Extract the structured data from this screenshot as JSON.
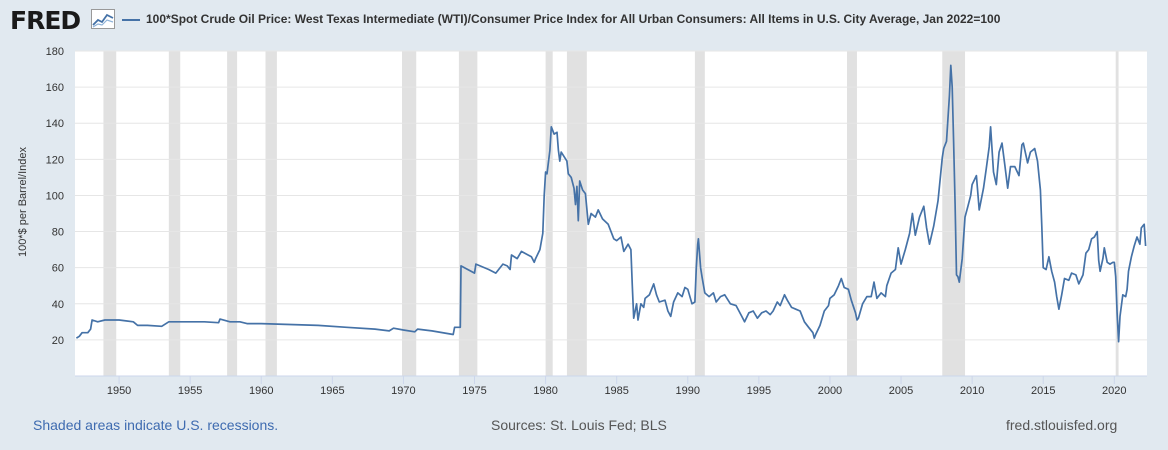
{
  "header": {
    "logo_text": "FRED",
    "series_title": "100*Spot Crude Oil Price: West Texas Intermediate (WTI)/Consumer Price Index for All Urban Consumers: All Items in U.S. City Average, Jan 2022=100"
  },
  "footer": {
    "recession_note": "Shaded areas indicate U.S. recessions.",
    "sources": "Sources: St. Louis Fed; BLS",
    "site": "fred.stlouisfed.org"
  },
  "colors": {
    "line": "#4572a7",
    "recession": "#e1e1e1",
    "background": "#e1e9f0",
    "plot": "#ffffff"
  },
  "chart_data": {
    "type": "line",
    "title": "100*Spot Crude Oil Price: West Texas Intermediate (WTI)/Consumer Price Index for All Urban Consumers: All Items in U.S. City Average, Jan 2022=100",
    "ylabel": "100*$ per Barrel/Index",
    "xlabel": "",
    "xlim": [
      1946.9,
      2022.3
    ],
    "ylim": [
      0,
      180
    ],
    "x_ticks": [
      1950,
      1955,
      1960,
      1965,
      1970,
      1975,
      1980,
      1985,
      1990,
      1995,
      2000,
      2005,
      2010,
      2015,
      2020
    ],
    "y_ticks": [
      20,
      40,
      60,
      80,
      100,
      120,
      140,
      160,
      180
    ],
    "grid": true,
    "recessions": [
      [
        1948.9,
        1949.8
      ],
      [
        1953.5,
        1954.3
      ],
      [
        1957.6,
        1958.3
      ],
      [
        1960.3,
        1961.1
      ],
      [
        1969.9,
        1970.9
      ],
      [
        1973.9,
        1975.2
      ],
      [
        1980.0,
        1980.5
      ],
      [
        1981.5,
        1982.9
      ],
      [
        1990.5,
        1991.2
      ],
      [
        2001.2,
        2001.9
      ],
      [
        2007.9,
        2009.5
      ],
      [
        2020.1,
        2020.3
      ]
    ],
    "series": [
      {
        "points": [
          [
            1947.0,
            21
          ],
          [
            1947.2,
            22
          ],
          [
            1947.4,
            24
          ],
          [
            1947.8,
            24
          ],
          [
            1948.0,
            26
          ],
          [
            1948.1,
            31
          ],
          [
            1948.5,
            30
          ],
          [
            1949.0,
            31
          ],
          [
            1950.0,
            31
          ],
          [
            1951.0,
            30
          ],
          [
            1951.3,
            28
          ],
          [
            1952.0,
            28
          ],
          [
            1953.0,
            27.5
          ],
          [
            1953.5,
            30
          ],
          [
            1955.0,
            30
          ],
          [
            1956.0,
            30
          ],
          [
            1957.0,
            29.5
          ],
          [
            1957.1,
            31.5
          ],
          [
            1957.8,
            30
          ],
          [
            1958.5,
            30
          ],
          [
            1959.0,
            29
          ],
          [
            1960.0,
            29
          ],
          [
            1962.0,
            28.5
          ],
          [
            1964.0,
            28
          ],
          [
            1966.0,
            27
          ],
          [
            1968.0,
            26
          ],
          [
            1969.0,
            25
          ],
          [
            1969.3,
            26.5
          ],
          [
            1970.0,
            25.5
          ],
          [
            1970.8,
            24.5
          ],
          [
            1971.0,
            26
          ],
          [
            1972.0,
            25
          ],
          [
            1973.5,
            23
          ],
          [
            1973.6,
            27
          ],
          [
            1974.0,
            27
          ],
          [
            1974.05,
            61
          ],
          [
            1975.0,
            57
          ],
          [
            1975.1,
            62
          ],
          [
            1976.0,
            59
          ],
          [
            1976.5,
            57
          ],
          [
            1977.0,
            62
          ],
          [
            1977.3,
            61
          ],
          [
            1977.5,
            59
          ],
          [
            1977.6,
            67
          ],
          [
            1978.0,
            65
          ],
          [
            1978.3,
            69
          ],
          [
            1979.0,
            66
          ],
          [
            1979.2,
            63
          ],
          [
            1979.3,
            65
          ],
          [
            1979.6,
            70
          ],
          [
            1979.8,
            79
          ],
          [
            1979.9,
            100
          ],
          [
            1980.0,
            113
          ],
          [
            1980.1,
            112
          ],
          [
            1980.3,
            125
          ],
          [
            1980.4,
            138
          ],
          [
            1980.6,
            134
          ],
          [
            1980.8,
            135
          ],
          [
            1980.9,
            125
          ],
          [
            1981.0,
            119
          ],
          [
            1981.1,
            124
          ],
          [
            1981.5,
            119
          ],
          [
            1981.6,
            112
          ],
          [
            1981.8,
            110
          ],
          [
            1982.0,
            104
          ],
          [
            1982.1,
            95
          ],
          [
            1982.2,
            105
          ],
          [
            1982.3,
            86
          ],
          [
            1982.4,
            108
          ],
          [
            1982.6,
            103
          ],
          [
            1982.8,
            101
          ],
          [
            1983.0,
            84
          ],
          [
            1983.2,
            90
          ],
          [
            1983.5,
            88
          ],
          [
            1983.7,
            92
          ],
          [
            1984.0,
            87
          ],
          [
            1984.4,
            84
          ],
          [
            1984.6,
            80
          ],
          [
            1984.8,
            76
          ],
          [
            1985.0,
            75
          ],
          [
            1985.3,
            77
          ],
          [
            1985.5,
            69
          ],
          [
            1985.8,
            73
          ],
          [
            1986.0,
            70
          ],
          [
            1986.1,
            50
          ],
          [
            1986.2,
            32
          ],
          [
            1986.4,
            40
          ],
          [
            1986.5,
            31
          ],
          [
            1986.7,
            40
          ],
          [
            1986.9,
            38
          ],
          [
            1987.0,
            43
          ],
          [
            1987.3,
            45
          ],
          [
            1987.6,
            51
          ],
          [
            1987.8,
            45
          ],
          [
            1988.0,
            41
          ],
          [
            1988.4,
            42
          ],
          [
            1988.6,
            36
          ],
          [
            1988.8,
            33
          ],
          [
            1989.0,
            41
          ],
          [
            1989.3,
            46
          ],
          [
            1989.6,
            44
          ],
          [
            1989.8,
            49
          ],
          [
            1990.0,
            48
          ],
          [
            1990.3,
            40
          ],
          [
            1990.5,
            41
          ],
          [
            1990.6,
            60
          ],
          [
            1990.7,
            73
          ],
          [
            1990.75,
            76
          ],
          [
            1990.9,
            60
          ],
          [
            1991.0,
            55
          ],
          [
            1991.2,
            46
          ],
          [
            1991.5,
            44
          ],
          [
            1991.8,
            46
          ],
          [
            1992.0,
            41
          ],
          [
            1992.3,
            44
          ],
          [
            1992.6,
            45
          ],
          [
            1993.0,
            40
          ],
          [
            1993.4,
            39
          ],
          [
            1993.8,
            33
          ],
          [
            1994.0,
            30
          ],
          [
            1994.3,
            35
          ],
          [
            1994.6,
            36
          ],
          [
            1994.9,
            32
          ],
          [
            1995.2,
            35
          ],
          [
            1995.5,
            36
          ],
          [
            1995.8,
            34
          ],
          [
            1996.0,
            36
          ],
          [
            1996.3,
            41
          ],
          [
            1996.5,
            39
          ],
          [
            1996.8,
            45
          ],
          [
            1997.0,
            42
          ],
          [
            1997.3,
            38
          ],
          [
            1997.6,
            37
          ],
          [
            1997.9,
            36
          ],
          [
            1998.2,
            30
          ],
          [
            1998.5,
            27
          ],
          [
            1998.8,
            24
          ],
          [
            1998.9,
            21
          ],
          [
            1999.0,
            23
          ],
          [
            1999.3,
            28
          ],
          [
            1999.6,
            36
          ],
          [
            1999.9,
            39
          ],
          [
            2000.0,
            43
          ],
          [
            2000.3,
            45
          ],
          [
            2000.6,
            50
          ],
          [
            2000.8,
            54
          ],
          [
            2001.0,
            49
          ],
          [
            2001.3,
            48
          ],
          [
            2001.5,
            42
          ],
          [
            2001.8,
            35
          ],
          [
            2001.9,
            31
          ],
          [
            2002.0,
            32
          ],
          [
            2002.3,
            40
          ],
          [
            2002.6,
            44
          ],
          [
            2002.9,
            44
          ],
          [
            2003.1,
            52
          ],
          [
            2003.3,
            43
          ],
          [
            2003.6,
            46
          ],
          [
            2003.9,
            44
          ],
          [
            2004.0,
            50
          ],
          [
            2004.3,
            57
          ],
          [
            2004.6,
            59
          ],
          [
            2004.8,
            71
          ],
          [
            2005.0,
            62
          ],
          [
            2005.3,
            70
          ],
          [
            2005.6,
            79
          ],
          [
            2005.8,
            90
          ],
          [
            2006.0,
            78
          ],
          [
            2006.3,
            88
          ],
          [
            2006.6,
            94
          ],
          [
            2006.8,
            82
          ],
          [
            2007.0,
            73
          ],
          [
            2007.3,
            83
          ],
          [
            2007.6,
            97
          ],
          [
            2007.9,
            121
          ],
          [
            2008.0,
            126
          ],
          [
            2008.2,
            130
          ],
          [
            2008.4,
            155
          ],
          [
            2008.5,
            172
          ],
          [
            2008.6,
            160
          ],
          [
            2008.7,
            130
          ],
          [
            2008.8,
            95
          ],
          [
            2008.9,
            56
          ],
          [
            2009.0,
            55
          ],
          [
            2009.1,
            52
          ],
          [
            2009.3,
            65
          ],
          [
            2009.5,
            88
          ],
          [
            2009.7,
            94
          ],
          [
            2009.9,
            100
          ],
          [
            2010.0,
            106
          ],
          [
            2010.3,
            111
          ],
          [
            2010.5,
            92
          ],
          [
            2010.8,
            104
          ],
          [
            2011.0,
            115
          ],
          [
            2011.2,
            127
          ],
          [
            2011.3,
            138
          ],
          [
            2011.5,
            113
          ],
          [
            2011.7,
            106
          ],
          [
            2011.9,
            124
          ],
          [
            2012.1,
            129
          ],
          [
            2012.3,
            117
          ],
          [
            2012.5,
            104
          ],
          [
            2012.7,
            116
          ],
          [
            2013.0,
            116
          ],
          [
            2013.3,
            111
          ],
          [
            2013.5,
            128
          ],
          [
            2013.6,
            129
          ],
          [
            2013.9,
            118
          ],
          [
            2014.1,
            124
          ],
          [
            2014.4,
            126
          ],
          [
            2014.6,
            119
          ],
          [
            2014.8,
            103
          ],
          [
            2014.9,
            83
          ],
          [
            2015.0,
            60
          ],
          [
            2015.2,
            59
          ],
          [
            2015.4,
            66
          ],
          [
            2015.6,
            58
          ],
          [
            2015.8,
            52
          ],
          [
            2015.95,
            44
          ],
          [
            2016.1,
            37
          ],
          [
            2016.3,
            45
          ],
          [
            2016.5,
            54
          ],
          [
            2016.8,
            53
          ],
          [
            2017.0,
            57
          ],
          [
            2017.3,
            56
          ],
          [
            2017.5,
            51
          ],
          [
            2017.8,
            56
          ],
          [
            2018.0,
            68
          ],
          [
            2018.2,
            70
          ],
          [
            2018.4,
            76
          ],
          [
            2018.6,
            77
          ],
          [
            2018.8,
            80
          ],
          [
            2018.9,
            64
          ],
          [
            2019.0,
            58
          ],
          [
            2019.2,
            65
          ],
          [
            2019.3,
            71
          ],
          [
            2019.5,
            63
          ],
          [
            2019.7,
            62
          ],
          [
            2019.9,
            63
          ],
          [
            2020.0,
            63
          ],
          [
            2020.1,
            55
          ],
          [
            2020.2,
            35
          ],
          [
            2020.3,
            19
          ],
          [
            2020.4,
            33
          ],
          [
            2020.6,
            45
          ],
          [
            2020.8,
            44
          ],
          [
            2020.9,
            48
          ],
          [
            2021.0,
            58
          ],
          [
            2021.2,
            66
          ],
          [
            2021.4,
            72
          ],
          [
            2021.6,
            77
          ],
          [
            2021.8,
            73
          ],
          [
            2021.9,
            82
          ],
          [
            2022.0,
            83
          ],
          [
            2022.1,
            84
          ],
          [
            2022.2,
            72
          ]
        ]
      }
    ]
  }
}
